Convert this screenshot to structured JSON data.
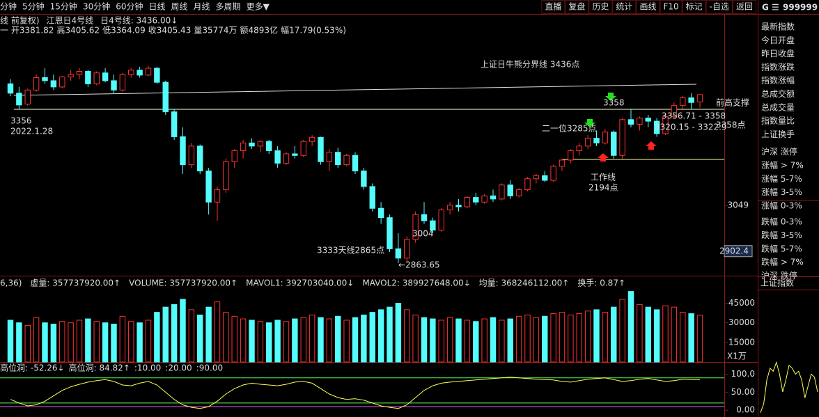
{
  "toolbar": {
    "left": [
      "分钟",
      "5分钟",
      "15分钟",
      "30分钟",
      "60分钟",
      "日线",
      "周线",
      "月线",
      "多周期",
      "更多▼"
    ],
    "active": "日线",
    "right": [
      "直播",
      "复盘",
      "历史",
      "统计",
      "画线",
      "F10",
      "标记",
      "-自选",
      "返回"
    ],
    "symbol_mark": "G",
    "symbol_code": "999999"
  },
  "info": {
    "line1": [
      {
        "text": "线 前复权)",
        "color": "#dddddd"
      },
      {
        "text": "江恩日4号线",
        "color": "#dddddd"
      },
      {
        "text": "日4号线: 3436.00↓",
        "color": "#dddddd"
      }
    ],
    "line2": [
      {
        "text": "一 开3381.82",
        "color": "#ff5050"
      },
      {
        "text": "高3405.62",
        "color": "#ff5050"
      },
      {
        "text": "低3364.09",
        "color": "#54fc54"
      },
      {
        "text": "收3405.43",
        "color": "#ff5050"
      },
      {
        "text": "量35774万",
        "color": "#ffff54"
      },
      {
        "text": "额4893亿",
        "color": "#dddddd"
      },
      {
        "text": "幅17.79(0.53%)",
        "color": "#ff5050"
      }
    ]
  },
  "main_chart": {
    "type": "candlestick",
    "ylim": [
      2837,
      3593
    ],
    "yticks": [
      3049,
      2902.4
    ],
    "up_color": "#ff3232",
    "down_color": "#54fcfc",
    "candles": [
      [
        3440,
        3455,
        3400,
        3410
      ],
      [
        3410,
        3430,
        3360,
        3372
      ],
      [
        3375,
        3425,
        3370,
        3420
      ],
      [
        3420,
        3470,
        3415,
        3460
      ],
      [
        3460,
        3490,
        3440,
        3450
      ],
      [
        3450,
        3470,
        3420,
        3430
      ],
      [
        3430,
        3465,
        3425,
        3462
      ],
      [
        3462,
        3485,
        3450,
        3470
      ],
      [
        3470,
        3490,
        3455,
        3480
      ],
      [
        3480,
        3485,
        3430,
        3440
      ],
      [
        3440,
        3480,
        3435,
        3475
      ],
      [
        3475,
        3490,
        3445,
        3450
      ],
      [
        3450,
        3470,
        3410,
        3420
      ],
      [
        3420,
        3475,
        3415,
        3470
      ],
      [
        3470,
        3490,
        3460,
        3484
      ],
      [
        3484,
        3495,
        3460,
        3468
      ],
      [
        3468,
        3498,
        3465,
        3490
      ],
      [
        3490,
        3495,
        3440,
        3445
      ],
      [
        3445,
        3450,
        3340,
        3350
      ],
      [
        3350,
        3360,
        3260,
        3270
      ],
      [
        3270,
        3300,
        3150,
        3180
      ],
      [
        3180,
        3250,
        3170,
        3240
      ],
      [
        3240,
        3245,
        3150,
        3160
      ],
      [
        3160,
        3170,
        3020,
        3060
      ],
      [
        3060,
        3110,
        3000,
        3100
      ],
      [
        3100,
        3200,
        3090,
        3190
      ],
      [
        3190,
        3230,
        3170,
        3225
      ],
      [
        3225,
        3260,
        3200,
        3250
      ],
      [
        3250,
        3265,
        3230,
        3240
      ],
      [
        3240,
        3258,
        3220,
        3255
      ],
      [
        3255,
        3260,
        3215,
        3225
      ],
      [
        3225,
        3240,
        3170,
        3185
      ],
      [
        3185,
        3220,
        3180,
        3215
      ],
      [
        3215,
        3240,
        3200,
        3210
      ],
      [
        3210,
        3260,
        3205,
        3255
      ],
      [
        3255,
        3275,
        3240,
        3268
      ],
      [
        3268,
        3270,
        3180,
        3190
      ],
      [
        3190,
        3230,
        3160,
        3220
      ],
      [
        3220,
        3235,
        3170,
        3180
      ],
      [
        3180,
        3215,
        3175,
        3210
      ],
      [
        3210,
        3220,
        3150,
        3160
      ],
      [
        3160,
        3170,
        3100,
        3110
      ],
      [
        3110,
        3120,
        3030,
        3040
      ],
      [
        3040,
        3060,
        2990,
        3010
      ],
      [
        3010,
        3020,
        2900,
        2910
      ],
      [
        2910,
        2960,
        2864,
        2880
      ],
      [
        2880,
        2950,
        2870,
        2940
      ],
      [
        2940,
        3030,
        2930,
        3020
      ],
      [
        3020,
        3060,
        2990,
        3000
      ],
      [
        3000,
        3010,
        2960,
        2970
      ],
      [
        2970,
        3040,
        2965,
        3035
      ],
      [
        3035,
        3060,
        3020,
        3050
      ],
      [
        3050,
        3070,
        3030,
        3045
      ],
      [
        3045,
        3080,
        3040,
        3075
      ],
      [
        3075,
        3090,
        3050,
        3060
      ],
      [
        3060,
        3085,
        3055,
        3080
      ],
      [
        3080,
        3100,
        3060,
        3070
      ],
      [
        3070,
        3120,
        3065,
        3115
      ],
      [
        3115,
        3130,
        3070,
        3080
      ],
      [
        3080,
        3105,
        3075,
        3100
      ],
      [
        3100,
        3140,
        3095,
        3135
      ],
      [
        3135,
        3150,
        3120,
        3145
      ],
      [
        3145,
        3160,
        3125,
        3130
      ],
      [
        3130,
        3180,
        3125,
        3175
      ],
      [
        3175,
        3200,
        3160,
        3195
      ],
      [
        3195,
        3230,
        3185,
        3225
      ],
      [
        3225,
        3250,
        3210,
        3240
      ],
      [
        3240,
        3275,
        3230,
        3265
      ],
      [
        3265,
        3290,
        3240,
        3250
      ],
      [
        3250,
        3295,
        3245,
        3285
      ],
      [
        3285,
        3290,
        3200,
        3210
      ],
      [
        3210,
        3330,
        3200,
        3325
      ],
      [
        3325,
        3360,
        3300,
        3310
      ],
      [
        3310,
        3335,
        3290,
        3330
      ],
      [
        3330,
        3340,
        3300,
        3320
      ],
      [
        3320,
        3330,
        3270,
        3280
      ],
      [
        3280,
        3340,
        3275,
        3335
      ],
      [
        3335,
        3380,
        3330,
        3370
      ],
      [
        3370,
        3400,
        3360,
        3395
      ],
      [
        3395,
        3410,
        3360,
        3380
      ],
      [
        3381.82,
        3405.62,
        3364.09,
        3405.43
      ]
    ],
    "annotations": [
      {
        "text": "上证日牛熊分界线  3436点",
        "color": "#ffff54",
        "size": 22
      },
      {
        "text": "前高支撑",
        "color": "#ffff54",
        "size": 20
      },
      {
        "text": "3358点",
        "color": "#ffff54",
        "size": 20
      },
      {
        "text": "3356",
        "color": "#ffff54",
        "size": 12
      },
      {
        "text": "2022.1.28",
        "color": "#ffff54",
        "size": 12
      },
      {
        "text": "3358",
        "color": "#ffff54",
        "size": 12
      },
      {
        "text": "3356.71 - 3358",
        "color": "#dddddd",
        "size": 11
      },
      {
        "text": "3320.15 - 3322.9",
        "color": "#dddddd",
        "size": 11
      },
      {
        "text": "二一位3285点",
        "color": "#ffff54",
        "size": 12
      },
      {
        "text": "工作线",
        "color": "#ffff54",
        "size": 12
      },
      {
        "text": "2194点",
        "color": "#ffff54",
        "size": 12
      },
      {
        "text": "3333天线2865点",
        "color": "#ffff54",
        "size": 12
      },
      {
        "text": "3004",
        "color": "#ffff54",
        "size": 12
      },
      {
        "text": "←2863.65",
        "color": "#dddddd",
        "size": 11
      }
    ]
  },
  "volume_chart": {
    "header": [
      {
        "text": "6,36)",
        "color": "#dddddd"
      },
      {
        "text": "虚量: 357737920.00↑",
        "color": "#dddddd"
      },
      {
        "text": "VOLUME: 357737920.00↑",
        "color": "#ffff54"
      },
      {
        "text": "MAVOL1: 392703040.00↓",
        "color": "#ff5050"
      },
      {
        "text": "MAVOL2: 389927648.00↓",
        "color": "#dddddd"
      },
      {
        "text": "均量: 368246112.00↑",
        "color": "#ffff54"
      },
      {
        "text": "换手: 0.87↑",
        "color": "#ff54ff"
      }
    ],
    "ylim": [
      0,
      57000
    ],
    "yticks": [
      45000,
      30000,
      15000
    ],
    "unit_label": "X1万",
    "values": [
      32000,
      30000,
      28000,
      34000,
      30000,
      29000,
      31000,
      30000,
      32000,
      33000,
      31000,
      30000,
      29000,
      35000,
      31000,
      30000,
      32000,
      38000,
      42000,
      44000,
      48000,
      40000,
      36000,
      42000,
      46000,
      38000,
      35000,
      33000,
      32000,
      31000,
      30000,
      32000,
      31000,
      33000,
      34000,
      36000,
      34000,
      33000,
      35000,
      32000,
      34000,
      36000,
      38000,
      40000,
      42000,
      45000,
      40000,
      36000,
      34000,
      33000,
      32000,
      34000,
      33000,
      32000,
      31000,
      33000,
      34000,
      32000,
      33000,
      35000,
      36000,
      34000,
      35000,
      37000,
      38000,
      36000,
      37000,
      39000,
      40000,
      38000,
      42000,
      48000,
      54000,
      44000,
      42000,
      40000,
      43000,
      42000,
      38000,
      37000,
      35774
    ]
  },
  "oscillator": {
    "header": [
      {
        "text": "高位洞: -52.26↓",
        "color": "#dddddd"
      },
      {
        "text": "高位洞: 84.82↑",
        "color": "#ffff54"
      },
      {
        "text": ":10.00",
        "color": "#ff54ff"
      },
      {
        "text": ":20.00",
        "color": "#54fc54"
      },
      {
        "text": ":90.00",
        "color": "#dddddd"
      }
    ],
    "ylim": [
      -15,
      130
    ],
    "yticks": [
      {
        "value": 100,
        "label": "100.0"
      },
      {
        "value": 50,
        "label": "50.00"
      },
      {
        "value": 0,
        "label": "0.00"
      }
    ],
    "levels": [
      10,
      20,
      90
    ],
    "color": "#ffff54",
    "values": [
      30,
      20,
      12,
      15,
      25,
      40,
      55,
      65,
      72,
      78,
      82,
      85,
      80,
      70,
      68,
      75,
      80,
      70,
      50,
      30,
      15,
      8,
      5,
      10,
      25,
      45,
      60,
      70,
      75,
      72,
      70,
      68,
      72,
      78,
      80,
      75,
      60,
      45,
      35,
      30,
      32,
      28,
      20,
      12,
      8,
      5,
      15,
      35,
      55,
      68,
      75,
      78,
      80,
      82,
      84,
      86,
      88,
      90,
      92,
      90,
      88,
      86,
      85,
      84,
      80,
      78,
      82,
      86,
      88,
      90,
      85,
      80,
      82,
      86,
      88,
      84,
      80,
      82,
      86,
      85,
      85
    ]
  },
  "side_panel": {
    "items": [
      "最新指数",
      "今日开盘",
      "昨日收盘",
      "指数涨跌",
      "指数涨幅",
      "总成交额",
      "总成交量",
      "指数量比",
      "上证换手",
      "沪深 涨停",
      "涨幅 > 7%",
      "涨幅 5-7%",
      "涨幅 3-5%",
      "涨幅 0-3%",
      "跌幅 0-3%",
      "跌幅 3-5%",
      "跌幅 5-7%",
      "跌幅 > 7%",
      "沪深 跌停"
    ],
    "sub_title": "上证指数",
    "mini_ylim": [
      0,
      100
    ],
    "mini_values": [
      5,
      20,
      60,
      80,
      75,
      90,
      70,
      40,
      60,
      85,
      80,
      70,
      75,
      60,
      30,
      50,
      70,
      65,
      40
    ]
  }
}
